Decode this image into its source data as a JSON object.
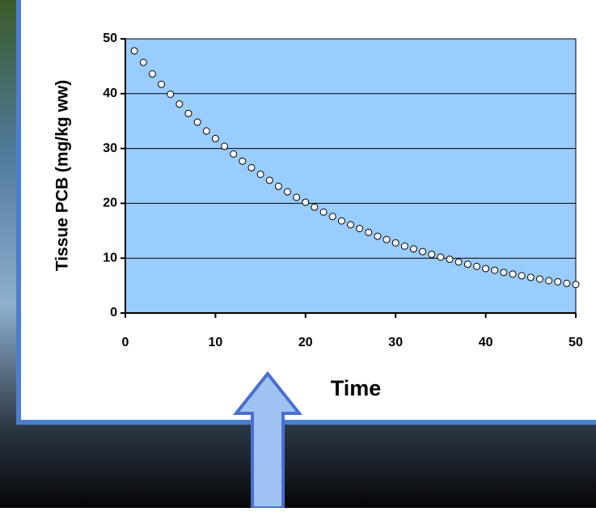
{
  "chart_data": {
    "type": "scatter",
    "xlabel": "Time",
    "ylabel": "Tissue PCB (mg/kg ww)",
    "x": [
      1,
      2,
      3,
      4,
      5,
      6,
      7,
      8,
      9,
      10,
      11,
      12,
      13,
      14,
      15,
      16,
      17,
      18,
      19,
      20,
      21,
      22,
      23,
      24,
      25,
      26,
      27,
      28,
      29,
      30,
      31,
      32,
      33,
      34,
      35,
      36,
      37,
      38,
      39,
      40,
      41,
      42,
      43,
      44,
      45,
      46,
      47,
      48,
      49,
      50
    ],
    "series": [
      {
        "color": "#ffffff",
        "values": [
          47.8,
          45.7,
          43.6,
          41.7,
          39.9,
          38.1,
          36.4,
          34.8,
          33.2,
          31.8,
          30.4,
          29.0,
          27.7,
          26.5,
          25.3,
          24.2,
          23.1,
          22.1,
          21.1,
          20.2,
          19.3,
          18.4,
          17.6,
          16.8,
          16.1,
          15.4,
          14.7,
          14.0,
          13.4,
          12.8,
          12.2,
          11.7,
          11.2,
          10.7,
          10.2,
          9.8,
          9.3,
          8.9,
          8.5,
          8.1,
          7.8,
          7.4,
          7.1,
          6.8,
          6.5,
          6.2,
          5.9,
          5.7,
          5.4,
          5.2
        ]
      }
    ],
    "xlim": [
      0,
      50
    ],
    "xticks": [
      0,
      10,
      20,
      30,
      40,
      50
    ],
    "ylim": [
      0,
      50
    ],
    "yticks": [
      0,
      10,
      20,
      30,
      40,
      50
    ],
    "grid": true,
    "plot_color": "#99ccff"
  }
}
